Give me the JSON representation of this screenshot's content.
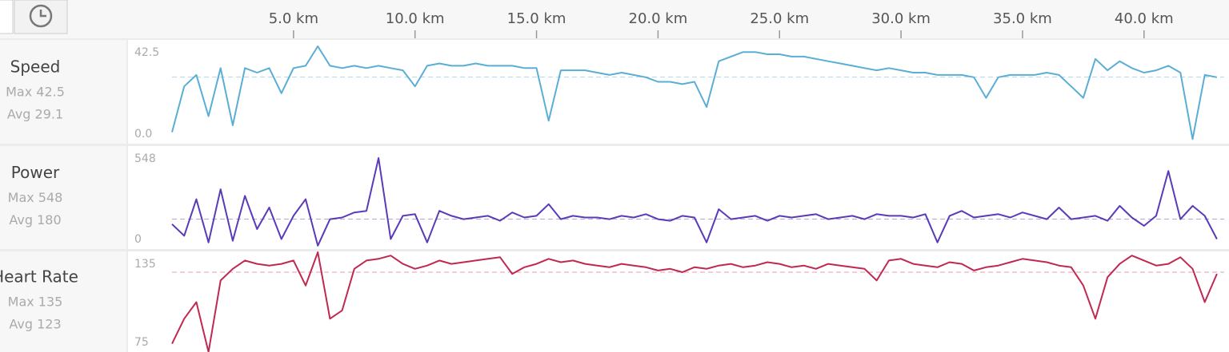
{
  "x_axis": {
    "xlim": [
      0,
      43.3
    ],
    "xticks": [
      {
        "value": 5,
        "label": "5.0 km"
      },
      {
        "value": 10,
        "label": "10.0 km"
      },
      {
        "value": 15,
        "label": "15.0 km"
      },
      {
        "value": 20,
        "label": "20.0 km"
      },
      {
        "value": 25,
        "label": "25.0 km"
      },
      {
        "value": 30,
        "label": "30.0 km"
      },
      {
        "value": 35,
        "label": "35.0 km"
      },
      {
        "value": 40,
        "label": "40.0 km"
      }
    ],
    "x": [
      0,
      0.5,
      1,
      1.5,
      2,
      2.5,
      3,
      3.5,
      4,
      4.5,
      5,
      5.5,
      6,
      6.5,
      7,
      7.5,
      8,
      8.5,
      9,
      9.5,
      10,
      10.5,
      11,
      11.5,
      12,
      12.5,
      13,
      13.5,
      14,
      14.5,
      15,
      15.5,
      16,
      16.5,
      17,
      17.5,
      18,
      18.5,
      19,
      19.5,
      20,
      20.5,
      21,
      21.5,
      22,
      22.5,
      23,
      23.5,
      24,
      24.5,
      25,
      25.5,
      26,
      26.5,
      27,
      27.5,
      28,
      28.5,
      29,
      29.5,
      30,
      30.5,
      31,
      31.5,
      32,
      32.5,
      33,
      33.5,
      34,
      34.5,
      35,
      35.5,
      36,
      36.5,
      37,
      37.5,
      38,
      38.5,
      39,
      39.5,
      40,
      40.5,
      41,
      41.5,
      42,
      42.5,
      43
    ]
  },
  "panels": [
    {
      "name": "Speed",
      "max_label": "Max 42.5",
      "avg_label": "Avg 29.1",
      "avg": 29.1,
      "color": "#5aaed6",
      "ylim": [
        0,
        42.5
      ],
      "yticks": [
        {
          "value": 0,
          "label": "0.0"
        },
        42.5
      ],
      "values": [
        5,
        25,
        30,
        12,
        33,
        8,
        33,
        31,
        33,
        22,
        33,
        34,
        42.5,
        34,
        33,
        34,
        33,
        34,
        33,
        32,
        25,
        34,
        35,
        34,
        34,
        35,
        34,
        34,
        34,
        33,
        33,
        10,
        32,
        32,
        32,
        31,
        30,
        31,
        30,
        29,
        27,
        27,
        26,
        27,
        16,
        36,
        38,
        40,
        40,
        39,
        39,
        38,
        38,
        37,
        36,
        35,
        34,
        33,
        32,
        33,
        32,
        31,
        31,
        30,
        30,
        30,
        29,
        20,
        29,
        30,
        30,
        30,
        31,
        30,
        25,
        20,
        37,
        32,
        36,
        33,
        31,
        32,
        34,
        31,
        2,
        30,
        29
      ]
    },
    {
      "name": "Power",
      "max_label": "Max 548",
      "avg_label": "Avg 180",
      "avg": 180,
      "color": "#5b3ab8",
      "ylim": [
        0,
        548
      ],
      "yticks": [
        0,
        548
      ],
      "values": [
        150,
        80,
        300,
        40,
        360,
        50,
        320,
        120,
        250,
        60,
        200,
        300,
        20,
        180,
        190,
        220,
        230,
        548,
        60,
        200,
        210,
        40,
        230,
        200,
        180,
        190,
        200,
        170,
        220,
        190,
        200,
        270,
        180,
        200,
        190,
        190,
        180,
        200,
        190,
        210,
        180,
        170,
        200,
        190,
        40,
        240,
        180,
        190,
        200,
        170,
        200,
        190,
        200,
        210,
        180,
        190,
        200,
        180,
        210,
        200,
        200,
        190,
        210,
        40,
        200,
        230,
        190,
        200,
        210,
        190,
        220,
        200,
        180,
        250,
        180,
        190,
        200,
        170,
        260,
        190,
        140,
        200,
        470,
        180,
        260,
        200,
        60
      ]
    },
    {
      "name": "Heart Rate",
      "max_label": "Max 135",
      "avg_label": "Avg 123",
      "avg": 123,
      "color": "#c0294f",
      "ylim": [
        75,
        135
      ],
      "yticks": [
        75,
        135
      ],
      "values": [
        80,
        95,
        105,
        75,
        118,
        125,
        130,
        128,
        127,
        128,
        130,
        115,
        135,
        95,
        100,
        125,
        130,
        131,
        133,
        128,
        125,
        127,
        130,
        128,
        129,
        130,
        131,
        132,
        122,
        126,
        128,
        131,
        129,
        130,
        128,
        127,
        126,
        128,
        127,
        126,
        124,
        125,
        123,
        126,
        125,
        127,
        128,
        126,
        127,
        129,
        128,
        126,
        127,
        125,
        128,
        127,
        126,
        125,
        118,
        130,
        131,
        128,
        127,
        126,
        129,
        128,
        124,
        126,
        127,
        129,
        131,
        130,
        129,
        127,
        126,
        115,
        95,
        120,
        128,
        133,
        130,
        127,
        128,
        132,
        125,
        105,
        122
      ]
    }
  ]
}
